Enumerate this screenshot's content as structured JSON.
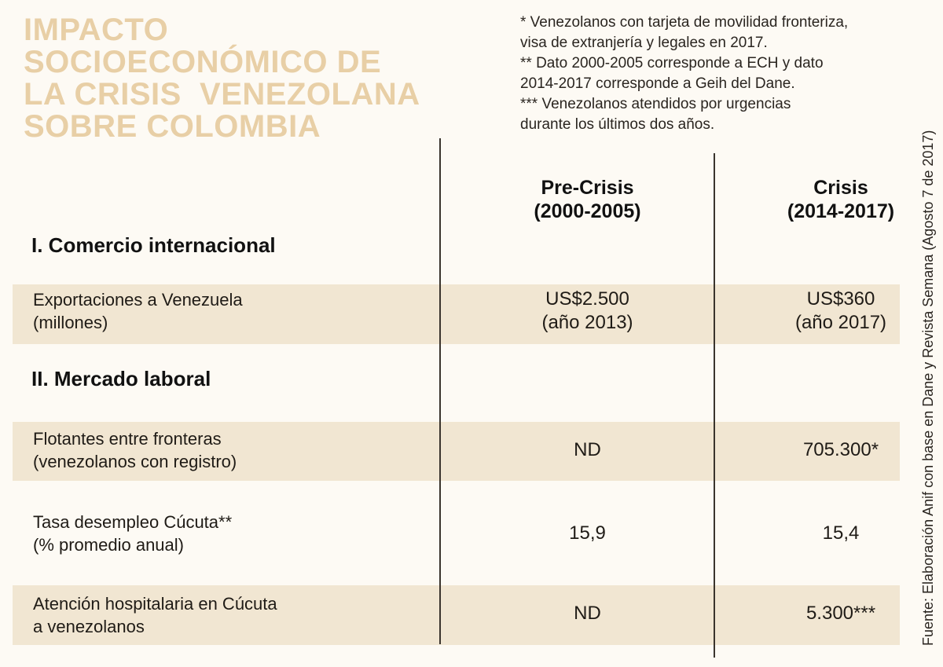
{
  "title_lines": [
    "IMPACTO",
    "SOCIOECONÓMICO DE",
    "LA CRISIS  VENEZOLANA",
    "SOBRE COLOMBIA"
  ],
  "notes": [
    "* Venezolanos con tarjeta de movilidad fronteriza,",
    "visa de extranjería y legales en 2017.",
    "** Dato 2000-2005 corresponde a ECH y dato",
    "2014-2017 corresponde a Geih del Dane.",
    "*** Venezolanos atendidos por urgencias",
    "durante los últimos dos años."
  ],
  "columns": {
    "pre": {
      "line1": "Pre-Crisis",
      "line2": "(2000-2005)"
    },
    "crisis": {
      "line1": "Crisis",
      "line2": "(2014-2017)"
    }
  },
  "sections": {
    "comercio": "I.  Comercio internacional",
    "laboral": "II.  Mercado laboral"
  },
  "rows": [
    {
      "label1": "Exportaciones a Venezuela",
      "label2": "(millones)",
      "pre1": "US$2.500",
      "pre2": "(año 2013)",
      "crisis1": "US$360",
      "crisis2": "(año 2017)"
    },
    {
      "label1": "Flotantes entre fronteras",
      "label2": "(venezolanos con registro)",
      "pre1": "ND",
      "crisis1": "705.300*"
    },
    {
      "label1": "Tasa desempleo Cúcuta**",
      "label2": "(% promedio anual)",
      "pre1": "15,9",
      "crisis1": "15,4"
    },
    {
      "label1": "Atención hospitalaria en Cúcuta",
      "label2": "a venezolanos",
      "pre1": "ND",
      "crisis1": "5.300***"
    }
  ],
  "source": "Fuente:  Elaboración Anif con base en Dane y Revista Semana (Agosto 7 de 2017)",
  "colors": {
    "background": "#fdfaf4",
    "title": "#e8cfa6",
    "band": "#f1e6d2"
  }
}
